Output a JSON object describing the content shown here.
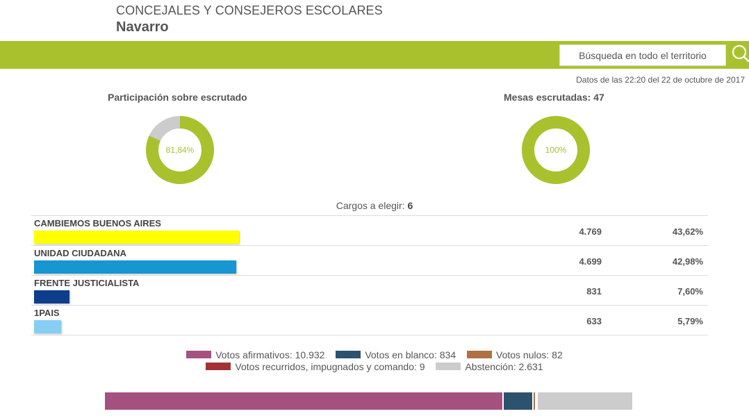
{
  "header": {
    "title": "CONCEJALES Y CONSEJEROS ESCOLARES",
    "subtitle": "Navarro"
  },
  "search": {
    "placeholder": "Búsqueda en todo el territorio",
    "icon": "search-icon"
  },
  "timestamp": "Datos de las 22:20 del 22 de octubre de 2017",
  "participation": {
    "title": "Participación sobre escrutado",
    "value_label": "81,84%",
    "fraction": 0.8184,
    "color": "#aac12e",
    "rest_color": "#cccccc"
  },
  "mesas": {
    "title": "Mesas escrutadas: 47",
    "value_label": "100%",
    "fraction": 1.0,
    "color": "#aac12e"
  },
  "cargos": {
    "label": "Cargos a elegir:",
    "value": "6"
  },
  "parties": [
    {
      "name": "CAMBIEMOS BUENOS AIRES",
      "votes": "4.769",
      "pct": "43,62%",
      "share": 0.4362,
      "color": "#ffff00"
    },
    {
      "name": "UNIDAD CIUDADANA",
      "votes": "4.699",
      "pct": "42,98%",
      "share": 0.4298,
      "color": "#1796d2"
    },
    {
      "name": "FRENTE JUSTICIALISTA",
      "votes": "831",
      "pct": "7,60%",
      "share": 0.076,
      "color": "#0d3d8c"
    },
    {
      "name": "1PAIS",
      "votes": "633",
      "pct": "5,79%",
      "share": 0.0579,
      "color": "#87cef5"
    }
  ],
  "legend": [
    {
      "label": "Votos afirmativos: 10.932",
      "value": 10932,
      "color": "#a5517f"
    },
    {
      "label": "Votos en blanco: 834",
      "value": 834,
      "color": "#2d5270"
    },
    {
      "label": "Votos nulos: 82",
      "value": 82,
      "color": "#b07040"
    },
    {
      "label": "Votos recurridos, impugnados y comando: 9",
      "value": 9,
      "color": "#a33333"
    },
    {
      "label": "Abstención: 2.631",
      "value": 2631,
      "color": "#cccccc"
    }
  ]
}
